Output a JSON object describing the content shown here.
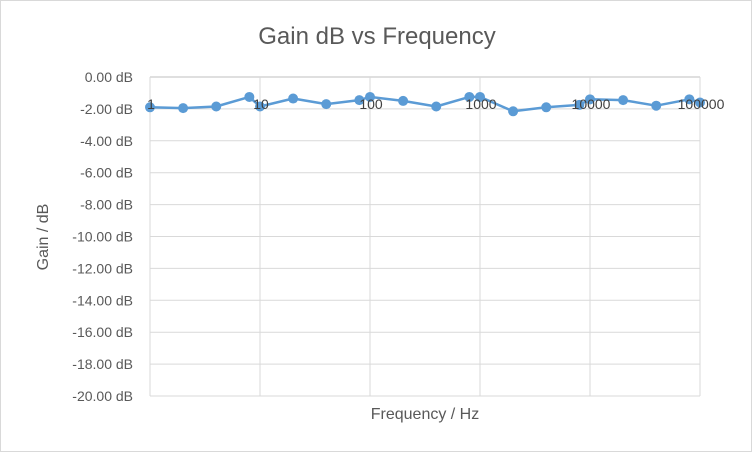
{
  "chart_data": {
    "type": "line",
    "title": "Gain dB vs Frequency",
    "xlabel": "Frequency / Hz",
    "ylabel": "Gain / dB",
    "x_scale": "log",
    "xlim": [
      1,
      100000
    ],
    "ylim": [
      -20,
      0
    ],
    "x_ticks": [
      1,
      10,
      100,
      1000,
      10000,
      100000
    ],
    "x_tick_labels": [
      "1",
      "10",
      "100",
      "1000",
      "10000",
      "100000"
    ],
    "y_ticks": [
      0,
      -2,
      -4,
      -6,
      -8,
      -10,
      -12,
      -14,
      -16,
      -18,
      -20
    ],
    "y_tick_labels": [
      "0.00 dB",
      "-2.00 dB",
      "-4.00 dB",
      "-6.00 dB",
      "-8.00 dB",
      "-10.00 dB",
      "-12.00 dB",
      "-14.00 dB",
      "-16.00 dB",
      "-18.00 dB",
      "-20.00 dB"
    ],
    "grid": "horizontal",
    "legend": "none",
    "series": [
      {
        "color": "#5b9bd5",
        "points": [
          {
            "x": 1,
            "y": -1.9
          },
          {
            "x": 2,
            "y": -1.95
          },
          {
            "x": 4,
            "y": -1.85
          },
          {
            "x": 8,
            "y": -1.25
          },
          {
            "x": 10,
            "y": -1.85
          },
          {
            "x": 20,
            "y": -1.35
          },
          {
            "x": 40,
            "y": -1.7
          },
          {
            "x": 80,
            "y": -1.45
          },
          {
            "x": 100,
            "y": -1.25
          },
          {
            "x": 200,
            "y": -1.5
          },
          {
            "x": 400,
            "y": -1.85
          },
          {
            "x": 800,
            "y": -1.25
          },
          {
            "x": 1000,
            "y": -1.25
          },
          {
            "x": 2000,
            "y": -2.15
          },
          {
            "x": 4000,
            "y": -1.9
          },
          {
            "x": 8000,
            "y": -1.75
          },
          {
            "x": 10000,
            "y": -1.4
          },
          {
            "x": 20000,
            "y": -1.45
          },
          {
            "x": 40000,
            "y": -1.8
          },
          {
            "x": 80000,
            "y": -1.4
          },
          {
            "x": 100000,
            "y": -1.6
          }
        ]
      }
    ]
  }
}
